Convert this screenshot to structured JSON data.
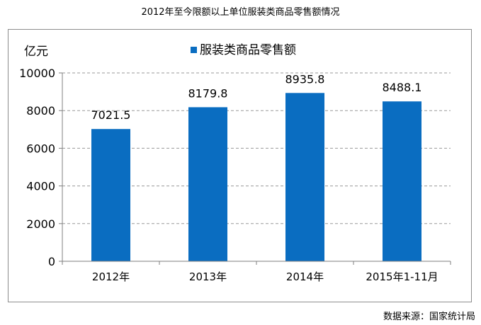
{
  "title": "2012年至今限额以上单位服装类商品零售额情况",
  "source": "数据来源：国家统计局",
  "chart_data": {
    "type": "bar",
    "title": "2012年至今限额以上单位服装类商品零售额情况",
    "ylabel": "亿元",
    "xlabel": "",
    "categories": [
      "2012年",
      "2013年",
      "2014年",
      "2015年1-11月"
    ],
    "series": [
      {
        "name": "服装类商品零售额",
        "values": [
          7021.5,
          8179.8,
          8935.8,
          8488.1
        ],
        "color": "#0a6dc1"
      }
    ],
    "value_labels": [
      "7021.5",
      "8179.8",
      "8935.8",
      "8488.1"
    ],
    "ylim": [
      0,
      10000
    ],
    "yticks": [
      0,
      2000,
      4000,
      6000,
      8000,
      10000
    ],
    "grid": true,
    "grid_style": "dashed",
    "legend_position": "top-center"
  }
}
